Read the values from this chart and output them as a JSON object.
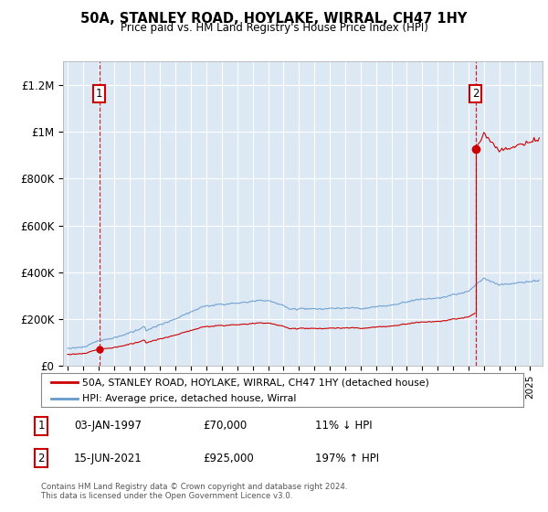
{
  "title": "50A, STANLEY ROAD, HOYLAKE, WIRRAL, CH47 1HY",
  "subtitle": "Price paid vs. HM Land Registry's House Price Index (HPI)",
  "bg_color": "#dce9f5",
  "sale1_year": 1997.04,
  "sale1_price": 70000,
  "sale2_year": 2021.46,
  "sale2_price": 925000,
  "hpi_color": "#6699cc",
  "sale_color": "#cc0000",
  "legend_line1": "50A, STANLEY ROAD, HOYLAKE, WIRRAL, CH47 1HY (detached house)",
  "legend_line2": "HPI: Average price, detached house, Wirral",
  "table_row1": [
    "1",
    "03-JAN-1997",
    "£70,000",
    "11% ↓ HPI"
  ],
  "table_row2": [
    "2",
    "15-JUN-2021",
    "£925,000",
    "197% ↑ HPI"
  ],
  "footer": "Contains HM Land Registry data © Crown copyright and database right 2024.\nThis data is licensed under the Open Government Licence v3.0.",
  "ylim": [
    0,
    1300000
  ],
  "xlim_start": 1994.7,
  "xlim_end": 2025.8,
  "yticks": [
    0,
    200000,
    400000,
    600000,
    800000,
    1000000,
    1200000
  ],
  "ytick_labels": [
    "£0",
    "£200K",
    "£400K",
    "£600K",
    "£800K",
    "£1M",
    "£1.2M"
  ]
}
